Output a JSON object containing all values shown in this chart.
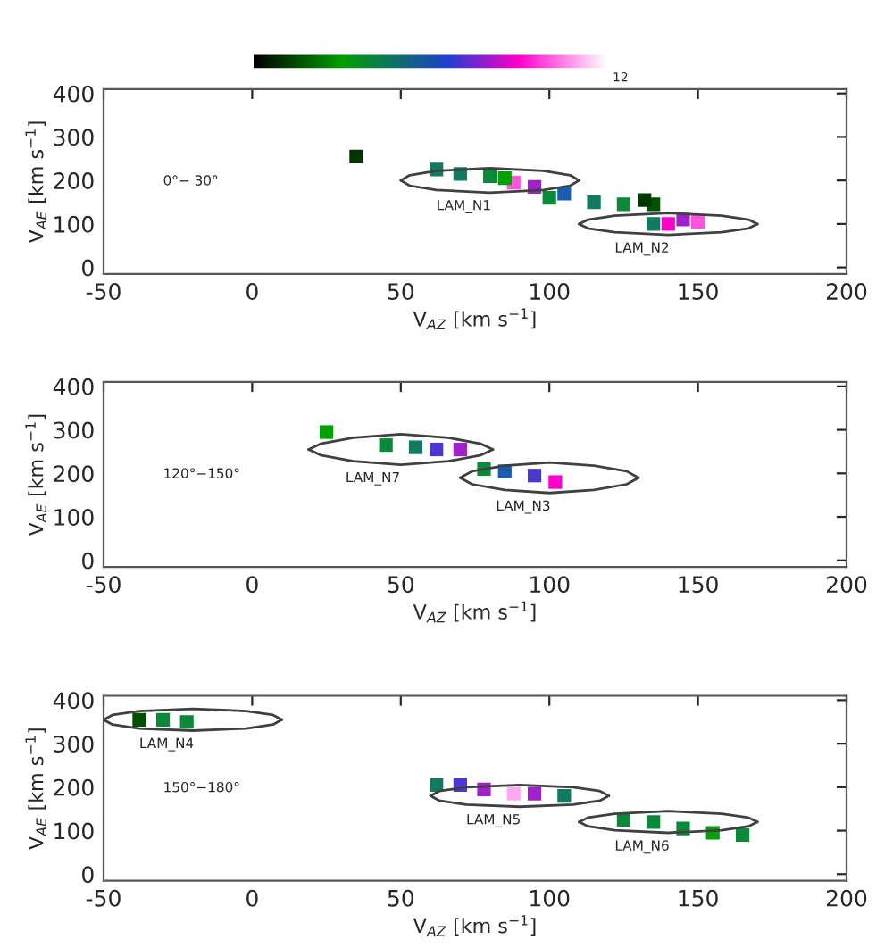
{
  "chart_data": [
    {
      "type": "scatter",
      "xlabel": "V$_{AZ}$ [km s$^{−1}$]",
      "ylabel": "V$_{AE}$ [km s$^{−1}$]",
      "xlim": [
        -50,
        200
      ],
      "ylim": [
        -15,
        410
      ],
      "xticks": [
        -50,
        0,
        50,
        100,
        150,
        200
      ],
      "yticks": [
        0,
        100,
        200,
        300,
        400
      ],
      "marker": "square",
      "grid": false,
      "legend": false,
      "annotations": [
        "12",
        "0°− 30°"
      ],
      "series": [
        {
          "x": [
            35,
            62,
            70,
            80,
            88,
            85,
            95,
            105,
            100,
            115,
            125,
            135,
            132,
            140,
            150,
            145,
            135
          ],
          "values": [
            255,
            225,
            215,
            210,
            195,
            205,
            185,
            170,
            160,
            150,
            145,
            145,
            155,
            100,
            105,
            110,
            100
          ],
          "colors": [
            "#003500",
            "#117a60",
            "#117a60",
            "#0a8a38",
            "#ff55dd",
            "#00a000",
            "#a020cc",
            "#1a5cb0",
            "#0a8a38",
            "#117a60",
            "#0a8a38",
            "#005000",
            "#003500",
            "#ff00cc",
            "#ff55dd",
            "#a020cc",
            "#117a60"
          ]
        },
        {
          "type": "line",
          "marker": "none",
          "color": "#404040",
          "x": [
            50,
            53,
            62,
            80,
            98,
            107,
            110
          ],
          "values": [
            200,
            212,
            222,
            228,
            222,
            212,
            200
          ]
        },
        {
          "type": "line",
          "name": "LAM_N1",
          "marker": "none",
          "color": "#404040",
          "x": [
            50,
            53,
            62,
            80,
            98,
            107,
            110
          ],
          "values": [
            200,
            188,
            178,
            172,
            178,
            188,
            200
          ]
        },
        {
          "type": "line",
          "marker": "none",
          "color": "#404040",
          "x": [
            110,
            113,
            122,
            140,
            158,
            167,
            170
          ],
          "values": [
            100,
            110,
            119,
            125,
            119,
            110,
            100
          ]
        },
        {
          "type": "line",
          "name": "LAM_N2",
          "marker": "none",
          "color": "#404040",
          "x": [
            110,
            113,
            122,
            140,
            158,
            167,
            170
          ],
          "values": [
            100,
            90,
            81,
            75,
            81,
            90,
            100
          ]
        }
      ]
    },
    {
      "type": "scatter",
      "xlabel": "V$_{AZ}$ [km s$^{−1}$]",
      "ylabel": "V$_{AE}$ [km s$^{−1}$]",
      "xlim": [
        -50,
        200
      ],
      "ylim": [
        -15,
        410
      ],
      "xticks": [
        -50,
        0,
        50,
        100,
        150,
        200
      ],
      "yticks": [
        0,
        100,
        200,
        300,
        400
      ],
      "marker": "square",
      "grid": false,
      "legend": false,
      "annotations": [
        "120°−150°"
      ],
      "series": [
        {
          "x": [
            25,
            45,
            55,
            62,
            70,
            78,
            85,
            95,
            102
          ],
          "values": [
            295,
            265,
            260,
            255,
            255,
            210,
            205,
            195,
            180
          ],
          "colors": [
            "#00a000",
            "#0a8a38",
            "#117a60",
            "#4a38d0",
            "#a020cc",
            "#0a8a38",
            "#1a5cb0",
            "#4a38d0",
            "#ff00cc"
          ]
        },
        {
          "type": "line",
          "marker": "none",
          "color": "#404040",
          "x": [
            19,
            23,
            34,
            50,
            66,
            77,
            81
          ],
          "values": [
            255,
            268,
            282,
            290,
            282,
            268,
            255
          ]
        },
        {
          "type": "line",
          "name": "LAM_N7",
          "marker": "none",
          "color": "#404040",
          "x": [
            19,
            23,
            34,
            50,
            66,
            77,
            81
          ],
          "values": [
            255,
            242,
            228,
            220,
            228,
            242,
            255
          ]
        },
        {
          "type": "line",
          "marker": "none",
          "color": "#404040",
          "x": [
            70,
            74,
            85,
            100,
            115,
            126,
            130
          ],
          "values": [
            190,
            205,
            218,
            225,
            218,
            205,
            190
          ]
        },
        {
          "type": "line",
          "name": "LAM_N3",
          "marker": "none",
          "color": "#404040",
          "x": [
            70,
            74,
            85,
            100,
            115,
            126,
            130
          ],
          "values": [
            190,
            175,
            162,
            155,
            162,
            175,
            190
          ]
        }
      ]
    },
    {
      "type": "scatter",
      "xlabel": "V$_{AZ}$ [km s$^{−1}$]",
      "ylabel": "V$_{AE}$ [km s$^{−1}$]",
      "xlim": [
        -50,
        200
      ],
      "ylim": [
        -15,
        410
      ],
      "xticks": [
        -50,
        0,
        50,
        100,
        150,
        200
      ],
      "yticks": [
        0,
        100,
        200,
        300,
        400
      ],
      "marker": "square",
      "grid": false,
      "legend": false,
      "annotations": [
        "150°−180°"
      ],
      "series": [
        {
          "x": [
            -38,
            -30,
            -22,
            62,
            70,
            78,
            88,
            95,
            105,
            125,
            135,
            145,
            155,
            165
          ],
          "values": [
            355,
            355,
            350,
            205,
            205,
            195,
            185,
            185,
            180,
            125,
            120,
            105,
            95,
            90
          ],
          "colors": [
            "#005000",
            "#0a8a38",
            "#0a8a38",
            "#117a60",
            "#4a38d0",
            "#a020cc",
            "#ffaaee",
            "#a020cc",
            "#117a60",
            "#0a8a38",
            "#0a8a38",
            "#0a8a38",
            "#00a000",
            "#0a8a38"
          ]
        },
        {
          "type": "line",
          "marker": "none",
          "color": "#404040",
          "x": [
            -50,
            -47,
            -38,
            -20,
            -2,
            7,
            10
          ],
          "values": [
            355,
            366,
            375,
            380,
            375,
            366,
            355
          ]
        },
        {
          "type": "line",
          "name": "LAM_N4",
          "marker": "none",
          "color": "#404040",
          "x": [
            -50,
            -47,
            -38,
            -20,
            -2,
            7,
            10
          ],
          "values": [
            355,
            344,
            335,
            330,
            335,
            344,
            355
          ]
        },
        {
          "type": "line",
          "marker": "none",
          "color": "#404040",
          "x": [
            60,
            63,
            72,
            90,
            108,
            117,
            120
          ],
          "values": [
            180,
            191,
            200,
            205,
            200,
            191,
            180
          ]
        },
        {
          "type": "line",
          "name": "LAM_N5",
          "marker": "none",
          "color": "#404040",
          "x": [
            60,
            63,
            72,
            90,
            108,
            117,
            120
          ],
          "values": [
            180,
            169,
            160,
            155,
            160,
            169,
            180
          ]
        },
        {
          "type": "line",
          "marker": "none",
          "color": "#404040",
          "x": [
            110,
            113,
            122,
            140,
            158,
            167,
            170
          ],
          "values": [
            120,
            130,
            139,
            145,
            139,
            130,
            120
          ]
        },
        {
          "type": "line",
          "name": "LAM_N6",
          "marker": "none",
          "color": "#404040",
          "x": [
            110,
            113,
            122,
            140,
            158,
            167,
            170
          ],
          "values": [
            120,
            110,
            101,
            95,
            101,
            110,
            120
          ]
        }
      ]
    }
  ]
}
